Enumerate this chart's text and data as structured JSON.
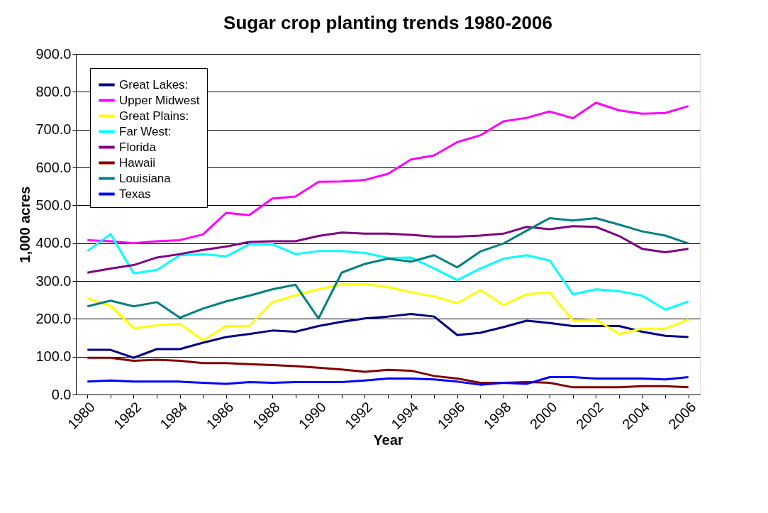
{
  "chart_data": {
    "type": "line",
    "title": "Sugar crop planting trends 1980-2006",
    "xlabel": "Year",
    "ylabel": "1,000 acres",
    "categories": [
      "1980",
      null,
      "1982",
      null,
      "1984",
      null,
      "1986",
      null,
      "1988",
      null,
      "1990",
      null,
      "1992",
      null,
      "1994",
      null,
      "1996",
      null,
      "1998",
      null,
      "2000",
      null,
      "2002",
      null,
      "2004",
      null,
      "2006"
    ],
    "ylim": [
      0,
      900
    ],
    "yticks": [
      {
        "value": 0,
        "label": "0.0"
      },
      {
        "value": 100,
        "label": "100.0"
      },
      {
        "value": 200,
        "label": "200.0"
      },
      {
        "value": 300,
        "label": "300.0"
      },
      {
        "value": 400,
        "label": "400.0"
      },
      {
        "value": 500,
        "label": "500.0"
      },
      {
        "value": 600,
        "label": "600.0"
      },
      {
        "value": 700,
        "label": "700.0"
      },
      {
        "value": 800,
        "label": "800.0"
      },
      {
        "value": 900,
        "label": "900.0"
      }
    ],
    "grid": "y",
    "legend": "top left",
    "marker": "none",
    "line_style": "solid",
    "series": [
      {
        "name": "Great Lakes:",
        "color": "#000080",
        "values": [
          118,
          118,
          97,
          120,
          120,
          137,
          152,
          160,
          169,
          166,
          181,
          192,
          201,
          206,
          213,
          206,
          157,
          163,
          178,
          195,
          189,
          181,
          181,
          181,
          166,
          155,
          152
        ]
      },
      {
        "name": "Upper Midwest",
        "color": "#ff00ff",
        "values": [
          408,
          405,
          400,
          405,
          408,
          423,
          480,
          474,
          518,
          523,
          562,
          563,
          567,
          583,
          621,
          632,
          667,
          685,
          722,
          731,
          748,
          730,
          771,
          751,
          742,
          744,
          762
        ]
      },
      {
        "name": "Great Plains:",
        "color": "#ffff00",
        "values": [
          254,
          234,
          175,
          183,
          187,
          143,
          181,
          181,
          244,
          262,
          278,
          291,
          292,
          284,
          270,
          259,
          241,
          276,
          236,
          265,
          270,
          195,
          198,
          160,
          174,
          174,
          198
        ]
      },
      {
        "name": "Far West:",
        "color": "#00ffff",
        "values": [
          379,
          424,
          320,
          329,
          368,
          371,
          365,
          397,
          397,
          371,
          379,
          379,
          374,
          361,
          362,
          333,
          302,
          333,
          359,
          368,
          354,
          265,
          278,
          273,
          261,
          224,
          246
        ]
      },
      {
        "name": "Florida",
        "color": "#800080",
        "values": [
          322,
          333,
          342,
          362,
          371,
          382,
          391,
          403,
          405,
          405,
          419,
          428,
          425,
          425,
          422,
          417,
          417,
          420,
          425,
          443,
          437,
          445,
          443,
          419,
          385,
          376,
          385
        ]
      },
      {
        "name": "Hawaii",
        "color": "#800000",
        "values": [
          97,
          97,
          89,
          92,
          89,
          83,
          83,
          80,
          78,
          75,
          71,
          66,
          60,
          65,
          63,
          49,
          42,
          31,
          31,
          33,
          31,
          19,
          19,
          19,
          22,
          22,
          19
        ]
      },
      {
        "name": "Louisiana",
        "color": "#008080",
        "values": [
          233,
          248,
          233,
          244,
          203,
          227,
          246,
          261,
          278,
          290,
          201,
          322,
          345,
          359,
          351,
          368,
          336,
          378,
          399,
          433,
          466,
          460,
          466,
          449,
          431,
          420,
          399
        ]
      },
      {
        "name": "Texas",
        "color": "#0000ff",
        "values": [
          34,
          37,
          34,
          34,
          34,
          31,
          28,
          33,
          31,
          33,
          33,
          33,
          37,
          42,
          42,
          40,
          34,
          26,
          31,
          28,
          46,
          46,
          42,
          42,
          42,
          40,
          46
        ]
      }
    ]
  }
}
